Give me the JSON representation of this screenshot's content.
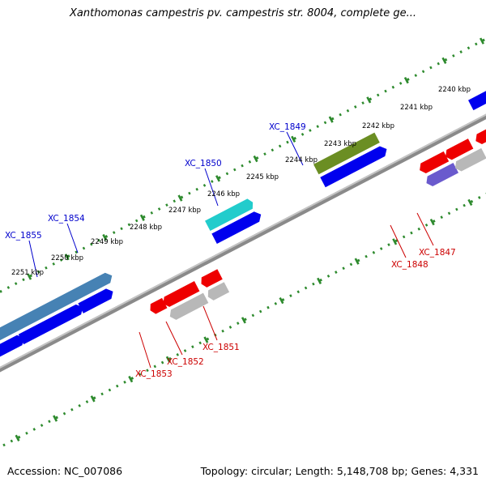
{
  "title": "Xanthomonas campestris pv. campestris str. 8004, complete ge...",
  "footer": {
    "accession": "Accession: NC_007086",
    "summary": "Topology: circular; Length: 5,148,708 bp; Genes: 4,331"
  },
  "ticks": [
    "2240 kbp",
    "2241 kbp",
    "2242 kbp",
    "2243 kbp",
    "2244 kbp",
    "2245 kbp",
    "2246 kbp",
    "2247 kbp",
    "2248 kbp",
    "2249 kbp",
    "2250 kbp",
    "2251 kbp"
  ],
  "colors": {
    "backbone": "#8a8a8a",
    "tick": "#2d8a2d",
    "forward_label": "#0000cc",
    "reverse_label": "#cc0000",
    "cds_blue": "#0000ee",
    "cds_red": "#ee0000",
    "cds_gray": "#b8b8b8",
    "cds_cyan": "#22cccc",
    "cds_olive": "#6b8e23",
    "cds_steel": "#4682b4",
    "cds_slate": "#6a5acd",
    "cds_light_blue": "#1eaee8"
  },
  "forward_labels": [
    "XC_1855",
    "XC_1854",
    "XC_1850",
    "XC_1849"
  ],
  "reverse_labels": [
    "XC_1853",
    "XC_1852",
    "XC_1851",
    "XC_1848",
    "XC_1847"
  ]
}
